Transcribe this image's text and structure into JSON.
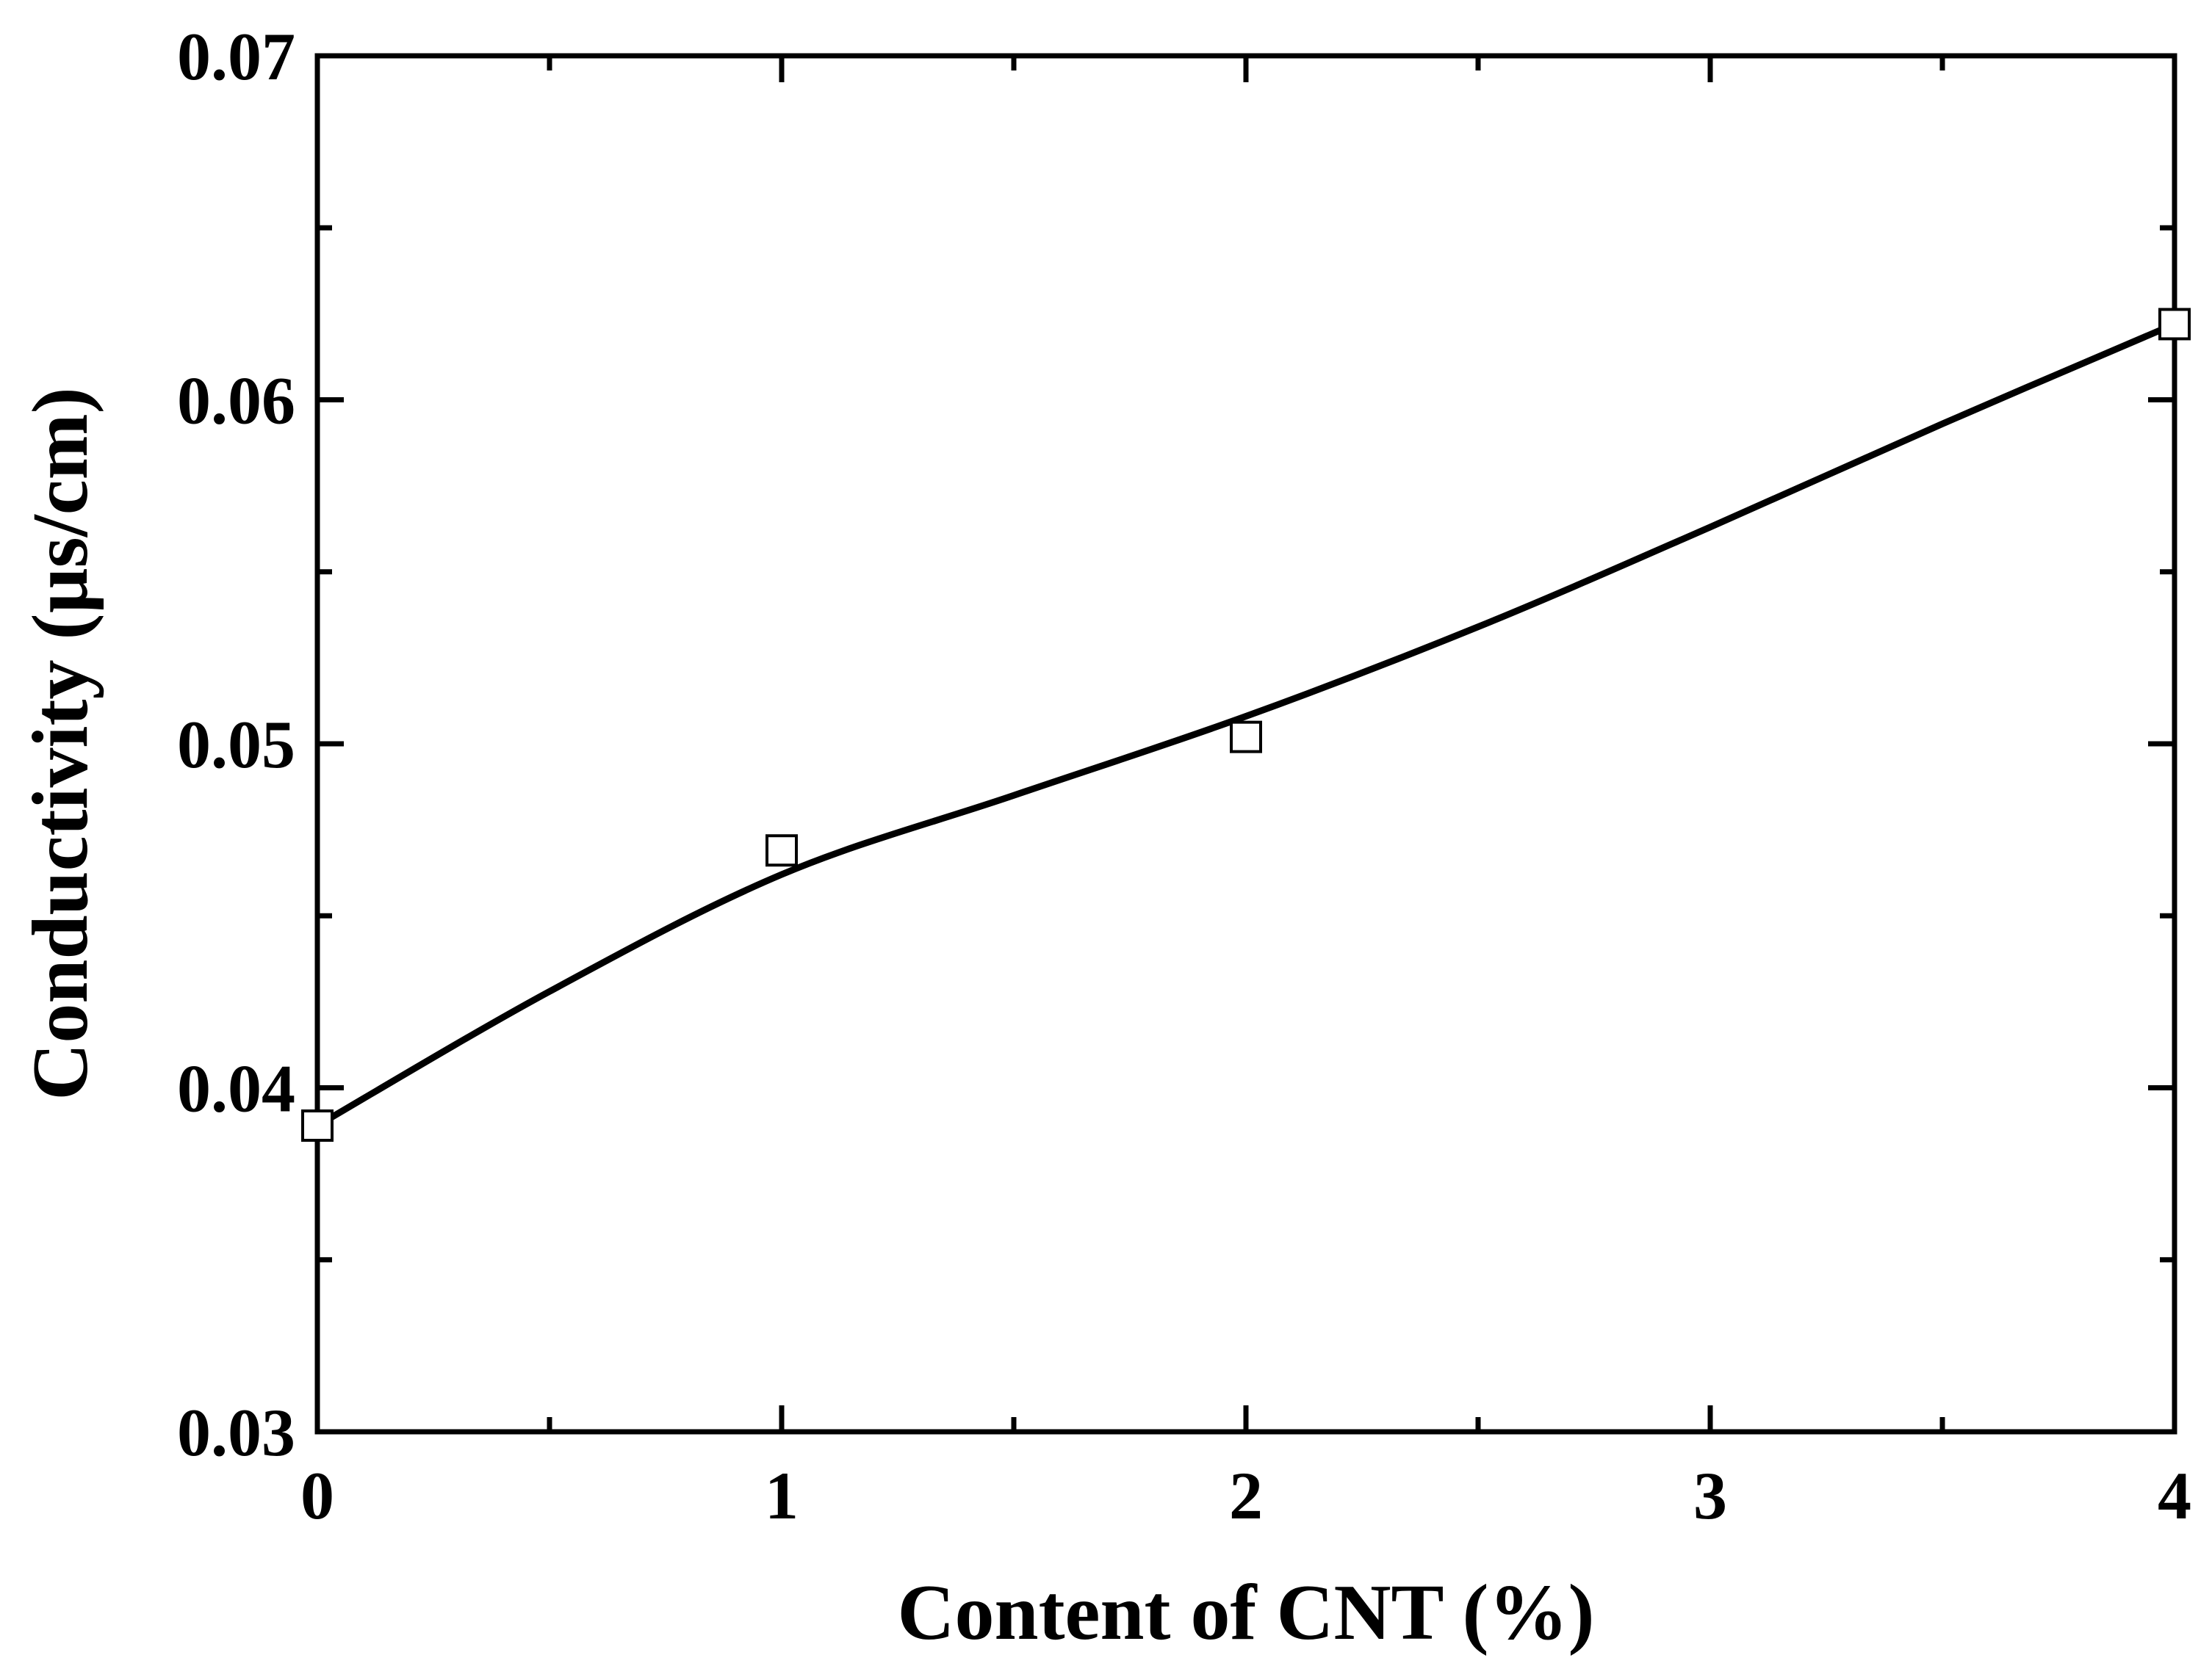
{
  "chart_data": {
    "type": "scatter",
    "title": "",
    "xlabel": "Content of CNT (%)",
    "ylabel": "Conductivity (µs/cm)",
    "xlim": [
      0,
      4
    ],
    "ylim": [
      0.03,
      0.07
    ],
    "x_ticks": [
      0,
      1,
      2,
      3,
      4
    ],
    "x_tick_labels": [
      "0",
      "1",
      "2",
      "3",
      "4"
    ],
    "x_minor_ticks": [
      0.5,
      1.5,
      2.5,
      3.5
    ],
    "y_ticks": [
      0.03,
      0.04,
      0.05,
      0.06,
      0.07
    ],
    "y_tick_labels": [
      "0.03",
      "0.04",
      "0.05",
      "0.06",
      "0.07"
    ],
    "y_minor_ticks": [
      0.035,
      0.045,
      0.055,
      0.065
    ],
    "grid": false,
    "legend": "none",
    "series": [
      {
        "marker": "open-square",
        "x": [
          0,
          1,
          2,
          4
        ],
        "y": [
          0.0389,
          0.0469,
          0.0502,
          0.0622
        ]
      }
    ],
    "fit_curve": {
      "style": "smooth-line",
      "x": [
        0,
        0.5,
        1,
        1.5,
        2,
        2.5,
        3,
        3.5,
        4
      ],
      "y": [
        0.0389,
        0.0428,
        0.0462,
        0.0485,
        0.0508,
        0.0534,
        0.0563,
        0.0593,
        0.0622
      ]
    },
    "colors": {
      "line": "#000000",
      "marker_fill": "#ffffff",
      "axes": "#000000"
    }
  }
}
